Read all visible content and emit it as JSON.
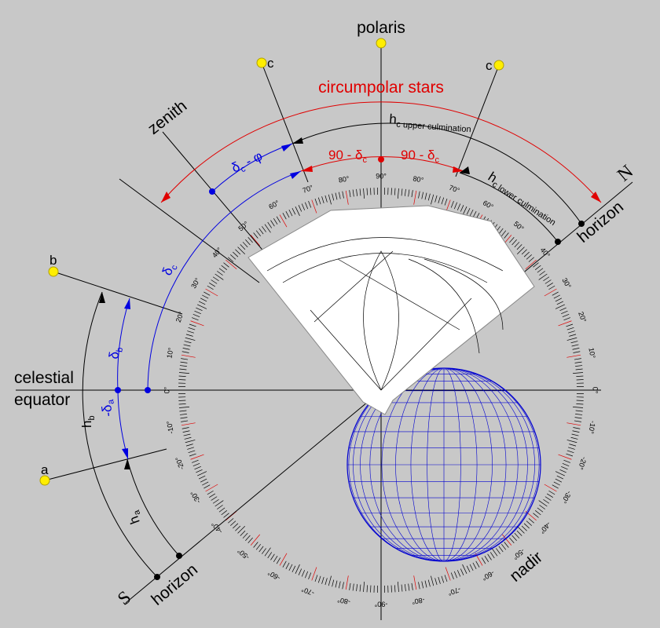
{
  "polaris": "polaris",
  "stars_c": [
    "c",
    "c"
  ],
  "circumpolar_stars": "circumpolar stars",
  "zenith": "zenith",
  "hc_upper": {
    "main": "h",
    "sub": "c upper culmination"
  },
  "hc_lower": {
    "main": "h",
    "sub": "c lower culmination"
  },
  "ninety_minus_dc": [
    {
      "main": "90 - δ",
      "sub": "c"
    },
    {
      "main": "90 - δ",
      "sub": "c"
    }
  ],
  "dc_minus_phi": {
    "main": "δ",
    "sub": "c",
    "rest": " - φ"
  },
  "north": "N",
  "horizon": [
    "horizon",
    "horizon"
  ],
  "star_b": "b",
  "delta_c": {
    "main": "δ",
    "sub": "c"
  },
  "delta_b": {
    "main": "δ",
    "sub": "b"
  },
  "celestial_equator": [
    "celestial",
    "equator"
  ],
  "star_a": "a",
  "delta_a": {
    "main": "-δ",
    "sub": "a"
  },
  "h_b": {
    "main": "h",
    "sub": "b"
  },
  "h_a": {
    "main": "h",
    "sub": "a"
  },
  "south": "S",
  "nadir": "nadir",
  "scale_labels": [
    "90°",
    "80°",
    "70°",
    "60°",
    "50°",
    "40°",
    "30°",
    "20°",
    "10°",
    "0°",
    "-10°",
    "-20°",
    "-30°",
    "-40°",
    "-50°",
    "-60°",
    "-70°",
    "-80°",
    "-90°"
  ]
}
